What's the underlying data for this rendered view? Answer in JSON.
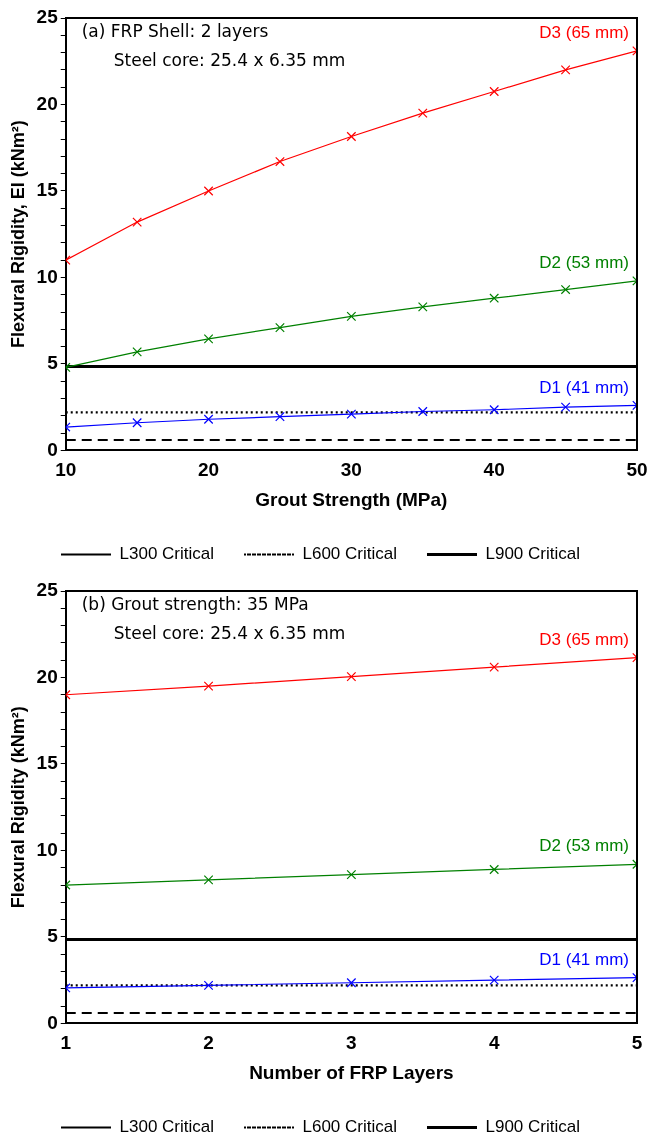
{
  "chart_data": [
    {
      "type": "line",
      "xlabel": "Grout Strength (MPa)",
      "ylabel": "Flexural Rigidity, EI (kNm²)",
      "x": [
        10,
        15,
        20,
        25,
        30,
        35,
        40,
        45,
        50
      ],
      "series": [
        {
          "name": "D3 (65 mm)",
          "color": "#ff0000",
          "values": [
            11.0,
            13.2,
            15.0,
            16.7,
            18.15,
            19.5,
            20.75,
            22.0,
            23.1
          ]
        },
        {
          "name": "D2 (53 mm)",
          "color": "#008000",
          "values": [
            4.8,
            5.7,
            6.45,
            7.1,
            7.75,
            8.3,
            8.8,
            9.3,
            9.8
          ]
        },
        {
          "name": "D1 (41 mm)",
          "color": "#0000ff",
          "values": [
            1.35,
            1.6,
            1.8,
            1.95,
            2.1,
            2.25,
            2.35,
            2.5,
            2.6
          ]
        }
      ],
      "xlim": [
        10,
        50
      ],
      "xticks": [
        10,
        20,
        30,
        40,
        50
      ],
      "ylim": [
        0,
        25
      ],
      "yticks": [
        0,
        {
          "value": 1,
          "label": null
        },
        {
          "value": 2,
          "label": null
        },
        {
          "value": 3,
          "label": null
        },
        {
          "value": 4,
          "label": null
        },
        5,
        {
          "value": 6,
          "label": null
        },
        {
          "value": 7,
          "label": null
        },
        {
          "value": 8,
          "label": null
        },
        {
          "value": 9,
          "label": null
        },
        10,
        {
          "value": 11,
          "label": null
        },
        {
          "value": 12,
          "label": null
        },
        {
          "value": 13,
          "label": null
        },
        {
          "value": 14,
          "label": null
        },
        15,
        {
          "value": 16,
          "label": null
        },
        {
          "value": 17,
          "label": null
        },
        {
          "value": 18,
          "label": null
        },
        {
          "value": 19,
          "label": null
        },
        20,
        {
          "value": 21,
          "label": null
        },
        {
          "value": 22,
          "label": null
        },
        {
          "value": 23,
          "label": null
        },
        {
          "value": 24,
          "label": null
        },
        25
      ],
      "ref_lines": [
        {
          "axis": "y",
          "value": 0.6,
          "label": "L300 Critical",
          "color": "#000000",
          "line_style": "dashed"
        },
        {
          "axis": "y",
          "value": 2.2,
          "label": "L600 Critical",
          "color": "#000000",
          "line_style": "dotted"
        },
        {
          "axis": "y",
          "value": 4.85,
          "label": "L900 Critical",
          "color": "#000000",
          "line_style": "solid"
        }
      ],
      "annotations": [
        "(a) FRP Shell: 2 layers",
        "Steel core: 25.4 x 6.35 mm"
      ],
      "marker": "cross",
      "line_style": "solid",
      "grid": false,
      "legend": "bottom"
    },
    {
      "type": "line",
      "xlabel": "Number of FRP Layers",
      "ylabel": "Flexural Rigidity (kNm²)",
      "x": [
        1,
        2,
        3,
        4,
        5
      ],
      "series": [
        {
          "name": "D3 (65 mm)",
          "color": "#ff0000",
          "values": [
            19.0,
            19.5,
            20.05,
            20.6,
            21.15
          ]
        },
        {
          "name": "D2 (53 mm)",
          "color": "#008000",
          "values": [
            8.0,
            8.3,
            8.6,
            8.9,
            9.2
          ]
        },
        {
          "name": "D1 (41 mm)",
          "color": "#0000ff",
          "values": [
            2.05,
            2.2,
            2.35,
            2.5,
            2.65
          ]
        }
      ],
      "xlim": [
        1,
        5
      ],
      "xticks": [
        1,
        2,
        3,
        4,
        5
      ],
      "ylim": [
        0,
        25
      ],
      "yticks": [
        0,
        {
          "value": 1,
          "label": null
        },
        {
          "value": 2,
          "label": null
        },
        {
          "value": 3,
          "label": null
        },
        {
          "value": 4,
          "label": null
        },
        5,
        {
          "value": 6,
          "label": null
        },
        {
          "value": 7,
          "label": null
        },
        {
          "value": 8,
          "label": null
        },
        {
          "value": 9,
          "label": null
        },
        10,
        {
          "value": 11,
          "label": null
        },
        {
          "value": 12,
          "label": null
        },
        {
          "value": 13,
          "label": null
        },
        {
          "value": 14,
          "label": null
        },
        15,
        {
          "value": 16,
          "label": null
        },
        {
          "value": 17,
          "label": null
        },
        {
          "value": 18,
          "label": null
        },
        {
          "value": 19,
          "label": null
        },
        20,
        {
          "value": 21,
          "label": null
        },
        {
          "value": 22,
          "label": null
        },
        {
          "value": 23,
          "label": null
        },
        {
          "value": 24,
          "label": null
        },
        25
      ],
      "ref_lines": [
        {
          "axis": "y",
          "value": 0.6,
          "label": "L300 Critical",
          "color": "#000000",
          "line_style": "dashed"
        },
        {
          "axis": "y",
          "value": 2.2,
          "label": "L600 Critical",
          "color": "#000000",
          "line_style": "dotted"
        },
        {
          "axis": "y",
          "value": 4.85,
          "label": "L900 Critical",
          "color": "#000000",
          "line_style": "solid"
        }
      ],
      "annotations": [
        "(b) Grout strength: 35 MPa",
        "Steel core: 25.4 x 6.35 mm"
      ],
      "marker": "cross",
      "line_style": "solid",
      "grid": false,
      "legend": "bottom"
    }
  ]
}
